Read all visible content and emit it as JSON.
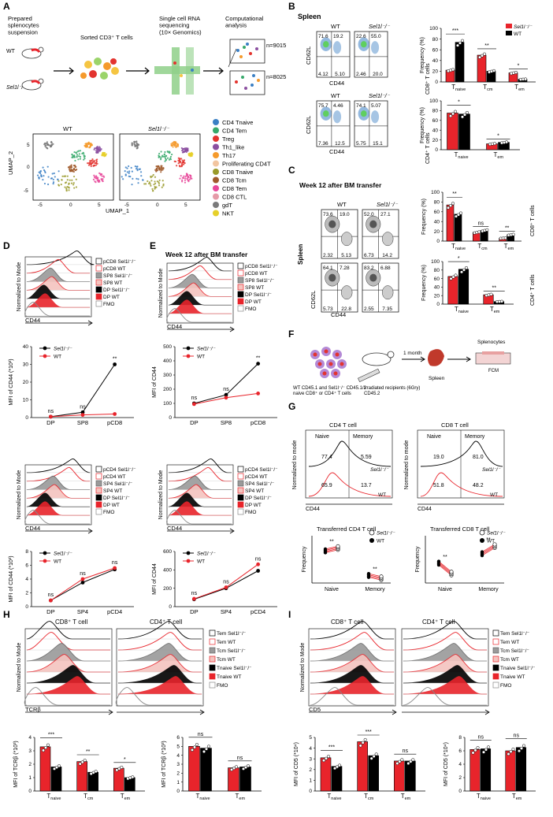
{
  "colors": {
    "red": "#e8242b",
    "black": "#000000",
    "gray": "#9a9a9a",
    "pink": "#f2b1ad",
    "blue": "#3a7fc4",
    "green": "#6a9a3a"
  },
  "panels": {
    "A": "A",
    "B": "B",
    "C": "C",
    "D": "D",
    "E": "E",
    "F": "F",
    "G": "G",
    "H": "H",
    "I": "I"
  },
  "a": {
    "prepared": "Prepared\nsplenocytes\nsuspension",
    "sorted": "Sorted CD3⁺ T cells",
    "scrna": "Single cell RNA\nsequencing\n(10× Genomics)",
    "comp": "Computational\nanalysis",
    "wt": "WT",
    "ko": "Sel1l⁻/⁻",
    "n1": "n=9015",
    "n2": "n=8025",
    "umap1": "UMAP_1",
    "umap2": "UMAP_2",
    "umap_wt": "WT",
    "umap_ko": "Sel1l⁻/⁻",
    "xticks": [
      "-5",
      "0",
      "5",
      "-5",
      "0",
      "5"
    ],
    "yticks": [
      "5",
      "0",
      "-5"
    ],
    "legend": [
      {
        "label": "CD4 Tnaive",
        "color": "#3a7fc4"
      },
      {
        "label": "CD4 Tem",
        "color": "#37a96b"
      },
      {
        "label": "Treg",
        "color": "#e3342f"
      },
      {
        "label": "Th1_like",
        "color": "#8b4fa0"
      },
      {
        "label": "Th17",
        "color": "#f59a2c"
      },
      {
        "label": "Proliferating CD4T",
        "color": "#f2c5a0"
      },
      {
        "label": "CD8 Tnaive",
        "color": "#9a9a2a"
      },
      {
        "label": "CD8 Tcm",
        "color": "#a05a2c"
      },
      {
        "label": "CD8 Tem",
        "color": "#e8489a"
      },
      {
        "label": "CD8 CTL",
        "color": "#e59aa8"
      },
      {
        "label": "gdT",
        "color": "#7a7a7a"
      },
      {
        "label": "NKT",
        "color": "#e6d02a"
      }
    ]
  },
  "b": {
    "title": "Spleen",
    "wt": "WT",
    "ko": "Sel1l⁻/⁻",
    "cd62l": "CD62L",
    "cd44": "CD44",
    "top_wt_q": [
      "71.6",
      "19.2",
      "4.12",
      "5.10"
    ],
    "top_ko_q": [
      "22.6",
      "55.0",
      "2.46",
      "20.0"
    ],
    "bot_wt_q": [
      "75.7",
      "4.46",
      "7.36",
      "12.5"
    ],
    "bot_ko_q": [
      "74.1",
      "5.07",
      "5.75",
      "15.1"
    ],
    "ylabel": "Frequency (%)",
    "cd8": "CD8⁺ T cells",
    "cd4": "CD4⁺ T cells",
    "legend": [
      "Sel1l⁻/⁻",
      "WT"
    ],
    "cats_top": [
      "Tnaive",
      "Tcm",
      "Tem"
    ],
    "cats_bot": [
      "Tnaive",
      "Tem"
    ],
    "sig_top": [
      "***",
      "**",
      "*"
    ],
    "sig_bot": [
      "*",
      "*"
    ],
    "yticks_top": [
      "0",
      "20",
      "40",
      "60",
      "80",
      "100"
    ],
    "yticks_bot": [
      "0",
      "20",
      "40",
      "60",
      "80",
      "100"
    ]
  },
  "c": {
    "title": "Week 12 after BM transfer",
    "wt": "WT",
    "ko": "Sel1l⁻/⁻",
    "spleen": "Spleen",
    "cd62l": "CD62L",
    "cd44": "CD44",
    "top_wt_q": [
      "73.6",
      "19.0",
      "2.32",
      "5.13"
    ],
    "top_ko_q": [
      "52.0",
      "27.1",
      "6.73",
      "14.2"
    ],
    "bot_wt_q": [
      "64.1",
      "7.28",
      "5.73",
      "22.8"
    ],
    "bot_ko_q": [
      "83.2",
      "6.88",
      "2.55",
      "7.35"
    ],
    "ylabel": "Frequency (%)",
    "cd8": "CD8⁺ T cells",
    "cd4": "CD4⁺ T cells",
    "cats_top": [
      "Tnaive",
      "Tcm",
      "Tem"
    ],
    "cats_bot": [
      "Tnaive",
      "Tem"
    ],
    "sig_top": [
      "**",
      "ns",
      "**"
    ],
    "sig_bot": [
      "*",
      "**"
    ],
    "yticks": [
      "0",
      "20",
      "40",
      "60",
      "80",
      "100"
    ]
  },
  "d": {
    "ylabel": "Normalized to Mode",
    "cd44": "CD44",
    "legend_top": [
      "pCD8 Sel1l⁻/⁻",
      "pCD8 WT",
      "SP8 Sel1l⁻/⁻",
      "SP8 WT",
      "DP Sel1l⁻/⁻",
      "DP WT",
      "FMO"
    ],
    "legend_bot": [
      "pCD4 Sel1l⁻/⁻",
      "pCD4 WT",
      "SP4 Sel1l⁻/⁻",
      "SP4 WT",
      "DP Sel1l⁻/⁻",
      "DP WT",
      "FMO"
    ],
    "mfi_top": "MFI of CD44 (*10³)",
    "mfi_bot": "MFI of CD44 (*10³)",
    "cats_top": [
      "DP",
      "SP8",
      "pCD8"
    ],
    "cats_bot": [
      "DP",
      "SP4",
      "pCD4"
    ],
    "sig_top": [
      "ns",
      "ns",
      "**"
    ],
    "sig_bot": [
      "ns",
      "ns",
      "ns"
    ],
    "yticks_top": [
      "0",
      "10",
      "20",
      "30",
      "40"
    ],
    "yticks_bot": [
      "0",
      "2",
      "4",
      "6",
      "8"
    ],
    "line_legend": [
      "Sel1l⁻/⁻",
      "WT"
    ]
  },
  "e": {
    "title": "Week 12 after BM transfer",
    "legend_top": [
      "pCD8 Sel1l⁻/⁻",
      "pCD8 WT",
      "SP8 Sel1l⁻/⁻",
      "SP8 WT",
      "DP Sel1l⁻/⁻",
      "DP WT",
      "FMO"
    ],
    "legend_bot": [
      "pCD4 Sel1l⁻/⁻",
      "pCD4 WT",
      "SP4 Sel1l⁻/⁻",
      "SP4 WT",
      "DP Sel1l⁻/⁻",
      "DP WT",
      "FMO"
    ],
    "mfi": "MFI of CD44",
    "cats_top": [
      "DP",
      "SP8",
      "pCD8"
    ],
    "cats_bot": [
      "DP",
      "SP4",
      "pCD4"
    ],
    "sig_top": [
      "ns",
      "ns",
      "**"
    ],
    "sig_bot": [
      "ns",
      "ns",
      "ns"
    ],
    "yticks_top": [
      "0",
      "100",
      "200",
      "300",
      "400",
      "500"
    ],
    "yticks_bot": [
      "0",
      "200",
      "400",
      "600"
    ]
  },
  "f": {
    "donor": "WT CD45.1 and Sel1l⁻/⁻ CD45.1/2\nnaive CD8⁺ or CD4⁺ T cells",
    "recipient": "Irradiated  recipients (6Gry)\nCD45.2",
    "time": "1 month",
    "spleen": "Spleen",
    "splen": "Splenocytes",
    "fcm": "FCM"
  },
  "g": {
    "cd4title": "CD4 T cell",
    "cd8title": "CD8 T cell",
    "naive": "Naive",
    "memory": "Memory",
    "ylabel": "Normalized to mode",
    "cd44": "CD44",
    "cd4_ko": [
      "77.4",
      "5.59"
    ],
    "cd4_wt": [
      "65.9",
      "13.7"
    ],
    "cd8_ko": [
      "19.0",
      "81.0"
    ],
    "cd8_wt": [
      "51.8",
      "48.2"
    ],
    "ko": "Sel1l⁻/⁻",
    "wt": "WT",
    "t4": "Transferred CD4 T cell",
    "t8": "Transferred CD8 T cell",
    "freq": "Frequency",
    "cats": [
      "Naive",
      "Memory"
    ],
    "sig4": [
      "**",
      "**"
    ],
    "sig8": [
      "**",
      "**"
    ],
    "leg": [
      "Sel1l⁻/⁻",
      "WT"
    ]
  },
  "h": {
    "cd8": "CD8⁺ T cell",
    "cd4": "CD4⁺ T cell",
    "ylabel": "Normalized to Mode",
    "xlab": "TCRβ",
    "legend": [
      "Tem Sel1l⁻/⁻",
      "Tem WT",
      "Tcm Sel1l⁻/⁻",
      "Tcm WT",
      "Tnaive Sel1l⁻/⁻",
      "Tnaive WT",
      "FMO"
    ],
    "mfi": "MFI of TCRβ (*10³)",
    "cats8": [
      "Tnaive",
      "Tcm",
      "Tem"
    ],
    "cats4": [
      "Tnaive",
      "Tem"
    ],
    "sig8": [
      "***",
      "**",
      "*"
    ],
    "sig4": [
      "ns",
      "ns"
    ],
    "yticks": [
      "0",
      "1",
      "2",
      "3",
      "4"
    ],
    "yticks4": [
      "0",
      "1",
      "2",
      "3",
      "4",
      "5",
      "6"
    ]
  },
  "i": {
    "cd8": "CD8⁺ T cell",
    "cd4": "CD4⁺ T cell",
    "ylabel": "Normalized to Mode",
    "xlab": "CD5",
    "legend": [
      "Tem Sel1l⁻/⁻",
      "Tem WT",
      "Tcm Sel1l⁻/⁻",
      "Tcm WT",
      "Tnaive Sel1l⁻/⁻",
      "Tnaive WT",
      "FMO"
    ],
    "mfi": "MFI of CD5 (*10⁴)",
    "cats8": [
      "Tnaive",
      "Tcm",
      "Tem"
    ],
    "cats4": [
      "Tnaive",
      "Tem"
    ],
    "sig8": [
      "***",
      "***",
      "ns"
    ],
    "sig4": [
      "ns",
      "ns"
    ],
    "yticks": [
      "0",
      "1",
      "2",
      "3",
      "4",
      "5"
    ],
    "yticks4": [
      "0",
      "2",
      "4",
      "6",
      "8"
    ]
  },
  "chart_data": [
    {
      "type": "bar",
      "id": "B-CD8",
      "title": "CD8⁺ T cells",
      "ylabel": "Frequency (%)",
      "categories": [
        "Tnaive",
        "Tcm",
        "Tem"
      ],
      "ylim": [
        0,
        100
      ],
      "series": [
        {
          "name": "Sel1l⁻/⁻",
          "values": [
            22,
            50,
            17
          ]
        },
        {
          "name": "WT",
          "values": [
            74,
            20,
            5
          ]
        }
      ]
    },
    {
      "type": "bar",
      "id": "B-CD4",
      "title": "CD4⁺ T cells",
      "ylabel": "Frequency (%)",
      "categories": [
        "Tnaive",
        "Tem"
      ],
      "ylim": [
        0,
        100
      ],
      "series": [
        {
          "name": "Sel1l⁻/⁻",
          "values": [
            75,
            12
          ]
        },
        {
          "name": "WT",
          "values": [
            73,
            15
          ]
        }
      ]
    },
    {
      "type": "bar",
      "id": "C-CD8",
      "title": "CD8⁺ T cells",
      "ylabel": "Frequency (%)",
      "categories": [
        "Tnaive",
        "Tcm",
        "Tem"
      ],
      "ylim": [
        0,
        100
      ],
      "series": [
        {
          "name": "WT",
          "values": [
            74,
            18,
            6
          ]
        },
        {
          "name": "Sel1l⁻/⁻",
          "values": [
            55,
            22,
            13
          ]
        }
      ]
    },
    {
      "type": "bar",
      "id": "C-CD4",
      "title": "CD4⁺ T cells",
      "ylabel": "Frequency (%)",
      "categories": [
        "Tnaive",
        "Tem"
      ],
      "ylim": [
        0,
        100
      ],
      "series": [
        {
          "name": "WT",
          "values": [
            65,
            22
          ]
        },
        {
          "name": "Sel1l⁻/⁻",
          "values": [
            82,
            6
          ]
        }
      ]
    },
    {
      "type": "line",
      "id": "D-top",
      "ylabel": "MFI of CD44 (*10³)",
      "categories": [
        "DP",
        "SP8",
        "pCD8"
      ],
      "ylim": [
        0,
        40
      ],
      "series": [
        {
          "name": "Sel1l⁻/⁻",
          "values": [
            0.5,
            3,
            30
          ]
        },
        {
          "name": "WT",
          "values": [
            0.5,
            1.5,
            2
          ]
        }
      ]
    },
    {
      "type": "line",
      "id": "D-bot",
      "ylabel": "MFI of CD44 (*10³)",
      "categories": [
        "DP",
        "SP4",
        "pCD4"
      ],
      "ylim": [
        0,
        8
      ],
      "series": [
        {
          "name": "Sel1l⁻/⁻",
          "values": [
            0.9,
            3.5,
            5.4
          ]
        },
        {
          "name": "WT",
          "values": [
            0.9,
            4,
            5.6
          ]
        }
      ]
    },
    {
      "type": "line",
      "id": "E-top",
      "ylabel": "MFI of CD44",
      "categories": [
        "DP",
        "SP8",
        "pCD8"
      ],
      "ylim": [
        0,
        500
      ],
      "series": [
        {
          "name": "Sel1l⁻/⁻",
          "values": [
            100,
            160,
            380
          ]
        },
        {
          "name": "WT",
          "values": [
            95,
            140,
            170
          ]
        }
      ]
    },
    {
      "type": "line",
      "id": "E-bot",
      "ylabel": "MFI of CD44",
      "categories": [
        "DP",
        "SP4",
        "pCD4"
      ],
      "ylim": [
        0,
        600
      ],
      "series": [
        {
          "name": "Sel1l⁻/⁻",
          "values": [
            80,
            200,
            390
          ]
        },
        {
          "name": "WT",
          "values": [
            85,
            210,
            460
          ]
        }
      ]
    },
    {
      "type": "line",
      "id": "G-CD4",
      "title": "Transferred CD4 T cell",
      "ylabel": "Frequency",
      "categories": [
        "Naive",
        "Memory"
      ],
      "series": [
        {
          "name": "Sel1l⁻/⁻",
          "values": [
            74,
            10
          ]
        },
        {
          "name": "WT",
          "values": [
            68,
            16
          ]
        }
      ]
    },
    {
      "type": "line",
      "id": "G-CD8",
      "title": "Transferred CD8 T cell",
      "ylabel": "Frequency",
      "categories": [
        "Naive",
        "Memory"
      ],
      "series": [
        {
          "name": "Sel1l⁻/⁻",
          "values": [
            20,
            78
          ]
        },
        {
          "name": "WT",
          "values": [
            42,
            62
          ]
        }
      ]
    },
    {
      "type": "bar",
      "id": "H-CD8",
      "ylabel": "MFI of TCRβ (*10³)",
      "categories": [
        "Tnaive",
        "Tcm",
        "Tem"
      ],
      "ylim": [
        0,
        4
      ],
      "series": [
        {
          "name": "WT",
          "values": [
            3.3,
            2.2,
            1.7
          ]
        },
        {
          "name": "Sel1l⁻/⁻",
          "values": [
            1.8,
            1.4,
            1.0
          ]
        }
      ]
    },
    {
      "type": "bar",
      "id": "H-CD4",
      "ylabel": "MFI of TCRβ (*10³)",
      "categories": [
        "Tnaive",
        "Tem"
      ],
      "ylim": [
        0,
        6
      ],
      "series": [
        {
          "name": "WT",
          "values": [
            5.0,
            2.6
          ]
        },
        {
          "name": "Sel1l⁻/⁻",
          "values": [
            4.8,
            2.7
          ]
        }
      ]
    },
    {
      "type": "bar",
      "id": "I-CD8",
      "ylabel": "MFI of CD5 (*10⁴)",
      "categories": [
        "Tnaive",
        "Tcm",
        "Tem"
      ],
      "ylim": [
        0,
        5
      ],
      "series": [
        {
          "name": "WT",
          "values": [
            3.1,
            4.6,
            2.8
          ]
        },
        {
          "name": "Sel1l⁻/⁻",
          "values": [
            2.3,
            3.3,
            2.8
          ]
        }
      ]
    },
    {
      "type": "bar",
      "id": "I-CD4",
      "ylabel": "MFI of CD5 (*10⁴)",
      "categories": [
        "Tnaive",
        "Tem"
      ],
      "ylim": [
        0,
        8
      ],
      "series": [
        {
          "name": "WT",
          "values": [
            6.2,
            6.0
          ]
        },
        {
          "name": "Sel1l⁻/⁻",
          "values": [
            6.3,
            6.5
          ]
        }
      ]
    }
  ]
}
